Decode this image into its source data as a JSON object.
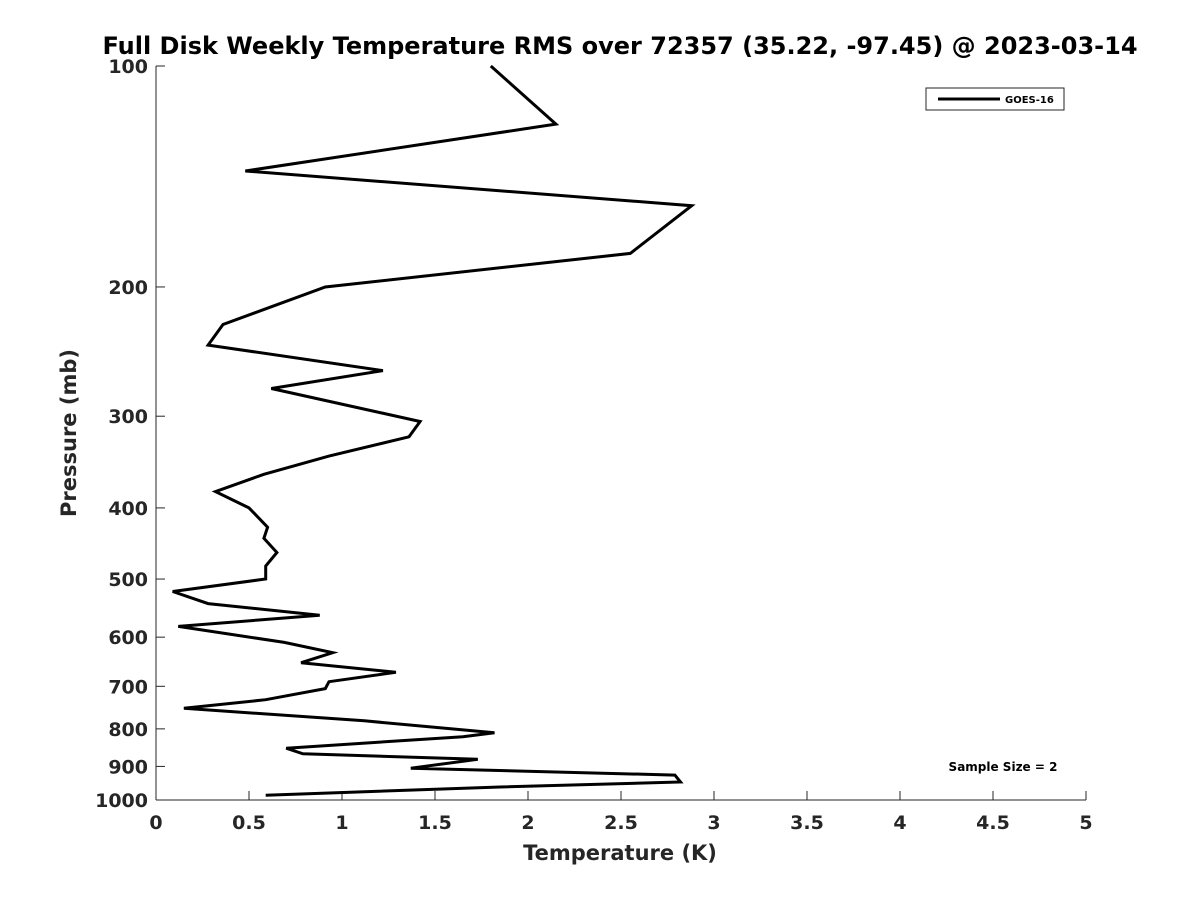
{
  "chart_data": {
    "type": "line",
    "title": "Full Disk Weekly Temperature RMS over 72357 (35.22, -97.45) @ 2023-03-14",
    "xlabel": "Temperature (K)",
    "ylabel": "Pressure (mb)",
    "xlim": [
      0,
      5
    ],
    "ylim": [
      100,
      1000
    ],
    "y_scale": "log",
    "y_reversed": true,
    "x_ticks": [
      "0",
      "0.5",
      "1",
      "1.5",
      "2",
      "2.5",
      "3",
      "3.5",
      "4",
      "4.5",
      "5"
    ],
    "y_ticks": [
      "100",
      "200",
      "300",
      "400",
      "500",
      "600",
      "700",
      "800",
      "900",
      "1000"
    ],
    "grid": false,
    "legend_position": "top-right",
    "annotation": "Sample Size = 2",
    "series": [
      {
        "name": "GOES-16",
        "color": "#000000",
        "points": [
          [
            1.8,
            100
          ],
          [
            2.15,
            120
          ],
          [
            0.48,
            139
          ],
          [
            2.88,
            155
          ],
          [
            2.55,
            180
          ],
          [
            0.91,
            200
          ],
          [
            0.36,
            225
          ],
          [
            0.28,
            240
          ],
          [
            1.22,
            260
          ],
          [
            0.62,
            275
          ],
          [
            1.42,
            305
          ],
          [
            1.36,
            320
          ],
          [
            0.93,
            340
          ],
          [
            0.58,
            360
          ],
          [
            0.32,
            380
          ],
          [
            0.5,
            400
          ],
          [
            0.6,
            425
          ],
          [
            0.58,
            440
          ],
          [
            0.65,
            460
          ],
          [
            0.59,
            480
          ],
          [
            0.59,
            500
          ],
          [
            0.09,
            520
          ],
          [
            0.28,
            540
          ],
          [
            0.88,
            560
          ],
          [
            0.12,
            580
          ],
          [
            0.69,
            610
          ],
          [
            0.95,
            630
          ],
          [
            0.78,
            650
          ],
          [
            1.29,
            670
          ],
          [
            0.93,
            690
          ],
          [
            0.91,
            705
          ],
          [
            0.59,
            730
          ],
          [
            0.15,
            750
          ],
          [
            1.12,
            780
          ],
          [
            1.82,
            810
          ],
          [
            1.65,
            820
          ],
          [
            0.7,
            850
          ],
          [
            0.79,
            865
          ],
          [
            1.73,
            880
          ],
          [
            1.37,
            905
          ],
          [
            2.79,
            925
          ],
          [
            2.82,
            945
          ],
          [
            1.85,
            960
          ],
          [
            0.59,
            985
          ]
        ]
      }
    ]
  }
}
